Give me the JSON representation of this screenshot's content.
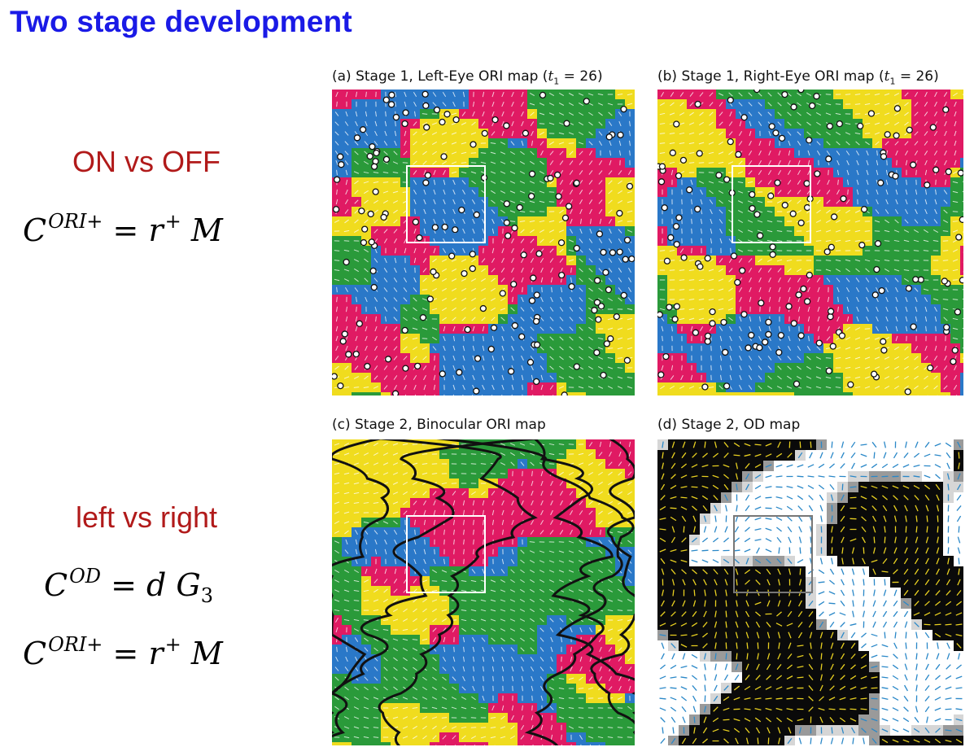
{
  "slide": {
    "title": "Two stage development"
  },
  "left_column": {
    "section1_label": "ON vs OFF",
    "eq1": {
      "symbol": "C",
      "superscript": "ORI+",
      "rhs_var": "r",
      "rhs_sup": "+",
      "rhs_rest": "M"
    },
    "section2_label": "left vs right",
    "eq2": {
      "symbol": "C",
      "superscript": "OD",
      "rhs": "d G",
      "rhs_sub": "3"
    },
    "eq3": {
      "symbol": "C",
      "superscript": "ORI+",
      "rhs_var": "r",
      "rhs_sup": "+",
      "rhs_rest": "M"
    }
  },
  "panels": [
    {
      "caption_prefix": "(a) Stage 1, Left-Eye ORI map (",
      "caption_var": "t",
      "caption_sub": "1",
      "caption_suffix": " = 26)",
      "kind": "ori"
    },
    {
      "caption_prefix": "(b) Stage 1, Right-Eye ORI map (",
      "caption_var": "t",
      "caption_sub": "1",
      "caption_suffix": " = 26)",
      "kind": "ori"
    },
    {
      "caption_prefix": "(c) Stage 2, Binocular ORI map",
      "caption_var": "",
      "caption_sub": "",
      "caption_suffix": "",
      "kind": "ori-binocular"
    },
    {
      "caption_prefix": "(d) Stage 2, OD map",
      "caption_var": "",
      "caption_sub": "",
      "caption_suffix": "",
      "kind": "od"
    }
  ],
  "colors": {
    "title": "#1a1ae6",
    "section_label": "#b11a1a",
    "ori_palette": [
      "#e01a63",
      "#f0dc1e",
      "#2a9a3a",
      "#2a78c8"
    ],
    "od_dark": "#0a0a0a",
    "od_light": "#ffffff"
  }
}
